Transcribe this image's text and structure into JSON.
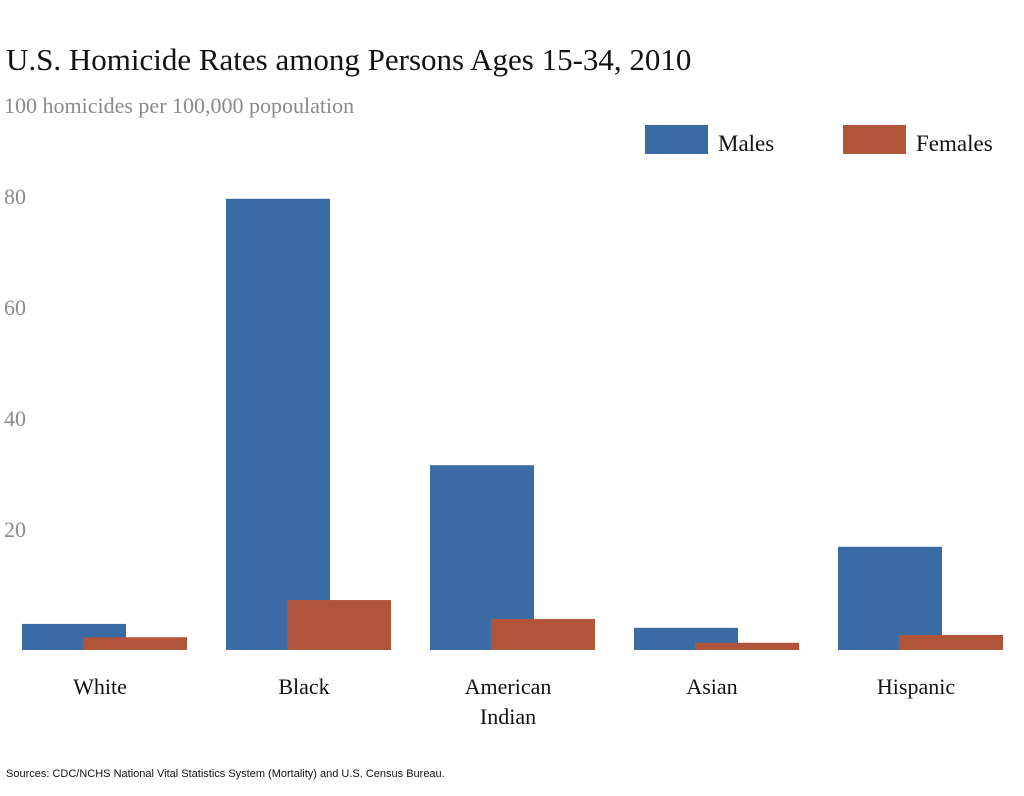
{
  "chart_data": {
    "type": "bar",
    "title": "U.S. Homicide Rates among Persons Ages 15-34, 2010",
    "subtitle": "100 homicides per 100,000 popoulation",
    "source": "Sources: CDC/NCHS National Vital Statistics System (Mortality) and U.S. Census Bureau.",
    "categories": [
      "White",
      "Black",
      "American Indian",
      "Asian",
      "Hispanic"
    ],
    "series": [
      {
        "name": "Males",
        "color": "#3a6ba5",
        "values": [
          4.7,
          81.3,
          33.3,
          4.0,
          18.6
        ]
      },
      {
        "name": "Females",
        "color": "#b0543a",
        "values": [
          2.3,
          9.0,
          5.6,
          1.3,
          2.7
        ]
      }
    ],
    "ylim": [
      0,
      90
    ],
    "yticks": [
      20,
      40,
      60,
      80
    ],
    "grid": false,
    "legend": "top-right"
  }
}
